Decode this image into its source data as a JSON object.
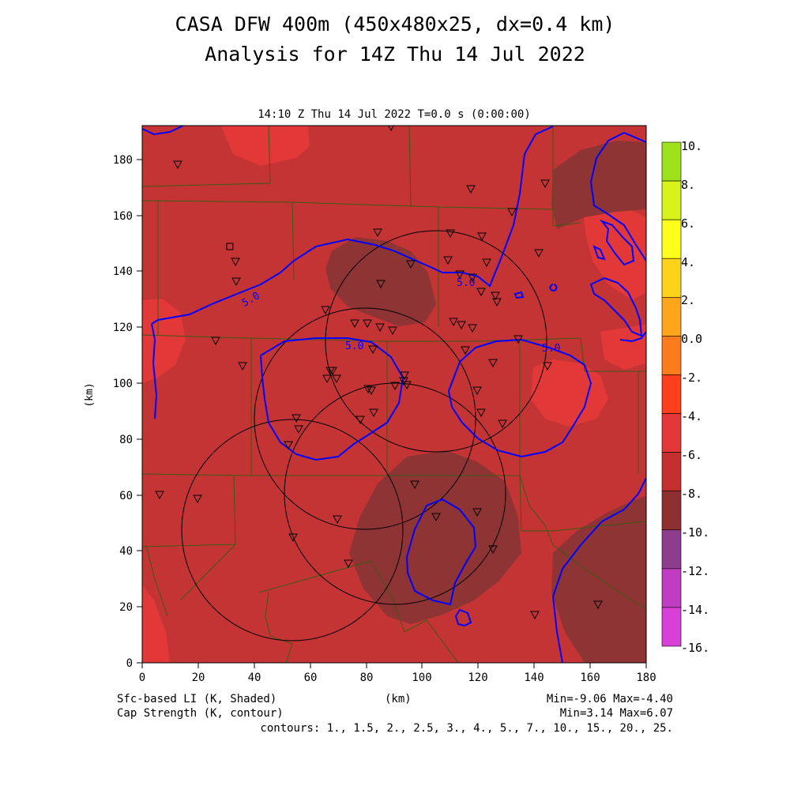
{
  "title_line1": "CASA DFW 400m (450x480x25, dx=0.4 km)",
  "title_line2": "Analysis for 14Z Thu 14 Jul 2022",
  "plot_subtitle": "14:10 Z Thu 14 Jul 2022   T=0.0 s (0:00:00)",
  "x_axis": {
    "label": "(km)",
    "ticks": [
      "0",
      "20",
      "40",
      "60",
      "80",
      "100",
      "120",
      "140",
      "160",
      "180"
    ]
  },
  "y_axis": {
    "label": "(km)",
    "ticks": [
      "0",
      "20",
      "40",
      "60",
      "80",
      "100",
      "120",
      "140",
      "160",
      "180"
    ]
  },
  "colorbar": {
    "labels": [
      "10.",
      "8.",
      "6.",
      "4.",
      "2.",
      "0.0",
      "-2.",
      "-4.",
      "-6.",
      "-8.",
      "-10.",
      "-12.",
      "-14.",
      "-16."
    ],
    "colors": [
      "#9ee21c",
      "#d8f21c",
      "#ffff1c",
      "#ffd21c",
      "#ffa61c",
      "#ff7c1c",
      "#ff3e1c",
      "#e43838",
      "#c43030",
      "#8e3030",
      "#8e3c8e",
      "#c03cc0",
      "#d840d8"
    ]
  },
  "footer": {
    "field1": "Sfc-based LI (K, Shaded)",
    "field2": "Cap Strength (K, contour)",
    "xunit": "(km)",
    "minmax1": "Min=-9.06 Max=-4.40",
    "minmax2": "Min=3.14 Max=6.07",
    "contours": "contours: 1., 1.5, 2., 2.5, 3., 4., 5., 7., 10., 15., 20., 25."
  },
  "contour_label": "5.0",
  "colors": {
    "background_field": "#c43434",
    "lighter_field": "#e23838",
    "darker_field": "#8e3434",
    "contour": "#0000ff",
    "county_lines": "#3c5a14"
  }
}
